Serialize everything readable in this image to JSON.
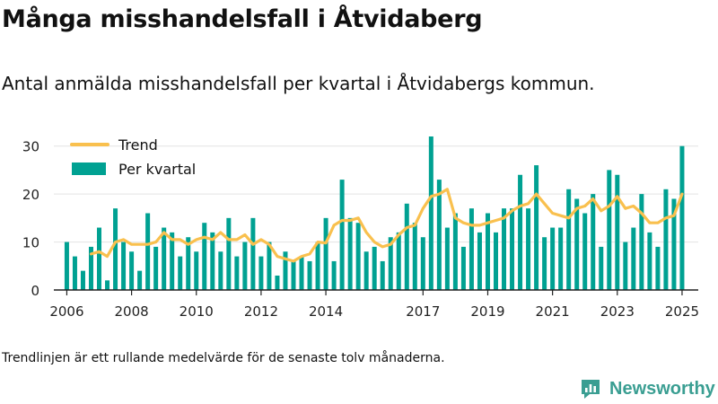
{
  "title": "Många misshandelsfall i Åtvidaberg",
  "subtitle": "Antal anmälda misshandelsfall per kvartal i Åtvidabergs kommun.",
  "footnote": "Trendlinjen är ett rullande medelvärde för de senaste tolv månaderna.",
  "brand": "Newsworthy",
  "colors": {
    "bar": "#00a192",
    "trend": "#f9c04e",
    "grid": "#e3e3e3",
    "axis": "#222222",
    "brand": "#3a9e92"
  },
  "chart_data": {
    "type": "bar",
    "legend_position": "top-left",
    "grid": true,
    "ylim": [
      0,
      32
    ],
    "xlim": [
      2005.6,
      2025.5
    ],
    "yticks": [
      0,
      10,
      20,
      30
    ],
    "xticks": [
      2006,
      2008,
      2010,
      2012,
      2014,
      2017,
      2019,
      2021,
      2023,
      2025
    ],
    "x": [
      2006.0,
      2006.25,
      2006.5,
      2006.75,
      2007.0,
      2007.25,
      2007.5,
      2007.75,
      2008.0,
      2008.25,
      2008.5,
      2008.75,
      2009.0,
      2009.25,
      2009.5,
      2009.75,
      2010.0,
      2010.25,
      2010.5,
      2010.75,
      2011.0,
      2011.25,
      2011.5,
      2011.75,
      2012.0,
      2012.25,
      2012.5,
      2012.75,
      2013.0,
      2013.25,
      2013.5,
      2013.75,
      2014.0,
      2014.25,
      2014.5,
      2014.75,
      2015.0,
      2015.25,
      2015.5,
      2015.75,
      2016.0,
      2016.25,
      2016.5,
      2016.75,
      2017.0,
      2017.25,
      2017.5,
      2017.75,
      2018.0,
      2018.25,
      2018.5,
      2018.75,
      2019.0,
      2019.25,
      2019.5,
      2019.75,
      2020.0,
      2020.25,
      2020.5,
      2020.75,
      2021.0,
      2021.25,
      2021.5,
      2021.75,
      2022.0,
      2022.25,
      2022.5,
      2022.75,
      2023.0,
      2023.25,
      2023.5,
      2023.75,
      2024.0,
      2024.25,
      2024.5,
      2024.75,
      2025.0
    ],
    "series": [
      {
        "name": "Per kvartal",
        "kind": "bar",
        "values": [
          10,
          7,
          4,
          9,
          13,
          2,
          17,
          10,
          8,
          4,
          16,
          9,
          13,
          12,
          7,
          11,
          8,
          14,
          12,
          8,
          15,
          7,
          10,
          15,
          7,
          10,
          3,
          8,
          6,
          7,
          6,
          10,
          15,
          6,
          23,
          15,
          14,
          8,
          9,
          6,
          11,
          12,
          18,
          14,
          11,
          32,
          23,
          13,
          16,
          9,
          17,
          12,
          16,
          12,
          17,
          17,
          24,
          17,
          26,
          11,
          13,
          13,
          21,
          19,
          16,
          20,
          9,
          25,
          24,
          10,
          13,
          20,
          12,
          9,
          21,
          19,
          30
        ]
      },
      {
        "name": "Trend",
        "kind": "line",
        "values": [
          null,
          null,
          null,
          7.5,
          8,
          7,
          10,
          10.5,
          9.5,
          9.5,
          9.5,
          10,
          12,
          10.5,
          10.5,
          9.5,
          10.5,
          11,
          10.5,
          12,
          10.5,
          10.5,
          11.5,
          9.5,
          10.5,
          9.5,
          7,
          6.5,
          6,
          7,
          7.5,
          10,
          9.8,
          13.5,
          14.5,
          14.5,
          15,
          12,
          10,
          9,
          9.5,
          11.5,
          13,
          13.5,
          17,
          19.5,
          20,
          21,
          15,
          14,
          13.5,
          13.5,
          14,
          14.5,
          15,
          16.5,
          17.5,
          18,
          20,
          18,
          16,
          15.5,
          15,
          17,
          17.5,
          19,
          16.5,
          17.5,
          19.5,
          17,
          17.5,
          16,
          14,
          14,
          15,
          15.5,
          20
        ]
      }
    ]
  }
}
